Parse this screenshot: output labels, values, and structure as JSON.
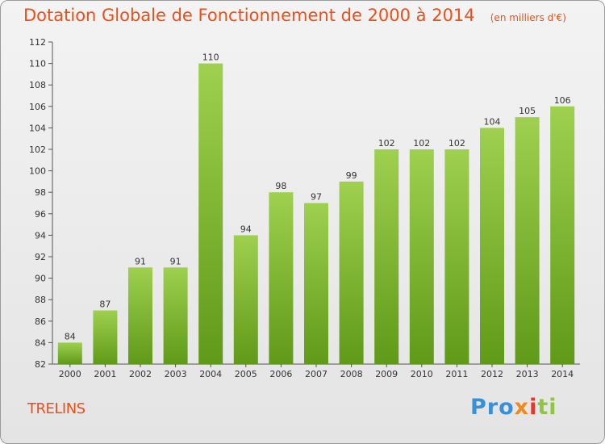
{
  "chart_data": {
    "type": "bar",
    "title": "Dotation Globale de Fonctionnement de 2000 à 2014",
    "unit_note": "(en milliers d'€)",
    "categories": [
      "2000",
      "2001",
      "2002",
      "2003",
      "2004",
      "2005",
      "2006",
      "2007",
      "2008",
      "2009",
      "2010",
      "2011",
      "2012",
      "2013",
      "2014"
    ],
    "values": [
      84,
      87,
      91,
      91,
      110,
      94,
      98,
      97,
      99,
      102,
      102,
      102,
      104,
      105,
      106
    ],
    "ylim": [
      82,
      112
    ],
    "yticks": [
      82,
      84,
      86,
      88,
      90,
      92,
      94,
      96,
      98,
      100,
      102,
      104,
      106,
      108,
      110,
      112
    ],
    "grid": false,
    "bar_color_top": "#9fd04f",
    "bar_color_bottom": "#5f9a18",
    "xlabel": "",
    "ylabel": ""
  },
  "commune": "TRELINS",
  "logo": {
    "text": "Proxiti",
    "colors": [
      "#3b8fd6",
      "#f08a1e",
      "#e8332a",
      "#8dc63f"
    ]
  },
  "accent_color": "#ec4f18"
}
